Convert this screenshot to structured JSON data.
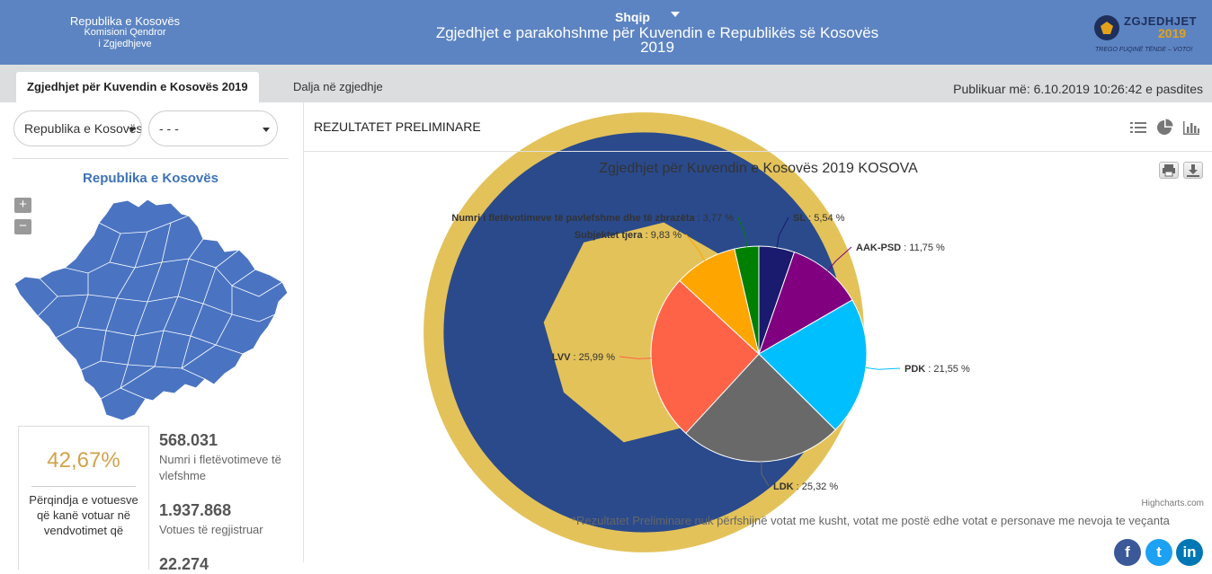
{
  "header": {
    "org_name": "Republika e Kosovës",
    "org_sub1": "Komisioni Qendror",
    "org_sub2": "i Zgjedhjeve",
    "language": "Shqip",
    "title_line1": "Zgjedhjet e parakohshme për Kuvendin e Republikës së Kosovës",
    "title_line2": "2019",
    "brand_word": "ZGJEDHJET",
    "brand_year": "2019",
    "brand_tagline": "TREGO FUQINË TËNDE – VOTO!"
  },
  "tabs": [
    {
      "label": "Zgjedhjet për Kuvendin e Kosovës 2019",
      "active": true
    },
    {
      "label": "Dalja në zgjedhje",
      "active": false
    }
  ],
  "published": "Publikuar më: 6.10.2019 10:26:42 e pasdites",
  "filters": {
    "region_select": "Republika e Kosovës",
    "municipality_select": "- - -"
  },
  "map": {
    "title": "Republika e Kosovës",
    "zoom_in": "+",
    "zoom_out": "−",
    "fill": "#4a74c2"
  },
  "turnout": {
    "percent": "42,67%",
    "description": "Përqindja e votuesve që kanë votuar në vendvotimet që"
  },
  "stats": [
    {
      "value": "568.031",
      "label": "Numri i fletëvotimeve të vlefshme"
    },
    {
      "value": "1.937.868",
      "label": "Votues të regjistruar"
    },
    {
      "value": "22.274",
      "label": ""
    }
  ],
  "results": {
    "title": "REZULTATET PRELIMINARE",
    "credits": "Highcharts.com",
    "note": "*Rezultatet Preliminare nuk përfshijnë votat me kusht, votat me postë edhe votat e personave me nevoja te veçanta"
  },
  "chart_data": {
    "type": "pie",
    "title": "Zgjedhjet për Kuvendin e Kosovës 2019 KOSOVA",
    "slices": [
      {
        "label": "SL",
        "value": 5.54,
        "display": "5,54 %",
        "color": "#1a1a6e"
      },
      {
        "label": "AAK-PSD",
        "value": 11.75,
        "display": "11,75 %",
        "color": "#800080"
      },
      {
        "label": "PDK",
        "value": 21.55,
        "display": "21,55 %",
        "color": "#00bfff"
      },
      {
        "label": "LDK",
        "value": 25.32,
        "display": "25,32 %",
        "color": "#696969"
      },
      {
        "label": "LVV",
        "value": 25.99,
        "display": "25,99 %",
        "color": "#ff6347"
      },
      {
        "label": "Subjektet tjera",
        "value": 9.83,
        "display": "9,83 %",
        "color": "#ffa500"
      },
      {
        "label": "Numri i fletëvotimeve të pavlefshme dhe të zbrazëta",
        "value": 3.77,
        "display": "3,77 %",
        "color": "#008000"
      }
    ]
  },
  "social": [
    {
      "name": "facebook",
      "glyph": "f",
      "color": "#3b5998"
    },
    {
      "name": "twitter",
      "glyph": "t",
      "color": "#1da1f2"
    },
    {
      "name": "linkedin",
      "glyph": "in",
      "color": "#0077b5"
    }
  ]
}
